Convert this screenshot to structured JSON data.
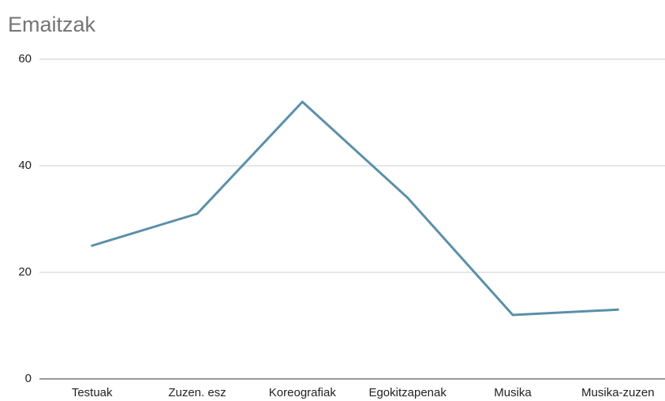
{
  "chart_data": {
    "type": "line",
    "title": "Emaitzak",
    "categories": [
      "Testuak",
      "Zuzen. esz",
      "Koreografiak",
      "Egokitzapenak",
      "Musika",
      "Musika-zuzen"
    ],
    "values": [
      25,
      31,
      52,
      34,
      12,
      13
    ],
    "color": "#5b8fa8",
    "ylim": [
      0,
      60
    ],
    "yticks": [
      0,
      20,
      40,
      60
    ],
    "grid": true
  }
}
